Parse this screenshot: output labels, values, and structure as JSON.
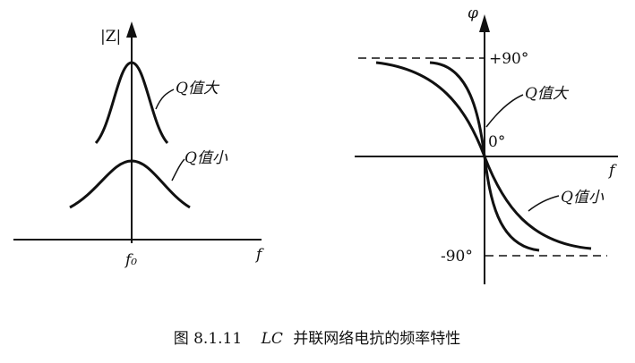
{
  "left": {
    "y_label": "|Z|",
    "x_label": "f",
    "center_label": "f₀",
    "high_q_label": "Q值大",
    "low_q_label": "Q值小"
  },
  "right": {
    "y_label": "φ",
    "x_label": "f",
    "top_label": "+90°",
    "zero_label": "0°",
    "bottom_label": "-90°",
    "high_q_label": "Q值大",
    "low_q_label": "Q值小"
  },
  "caption": {
    "number": "图 8.1.11",
    "title_italic": "LC",
    "title": "并联网络电抗的频率特性"
  }
}
